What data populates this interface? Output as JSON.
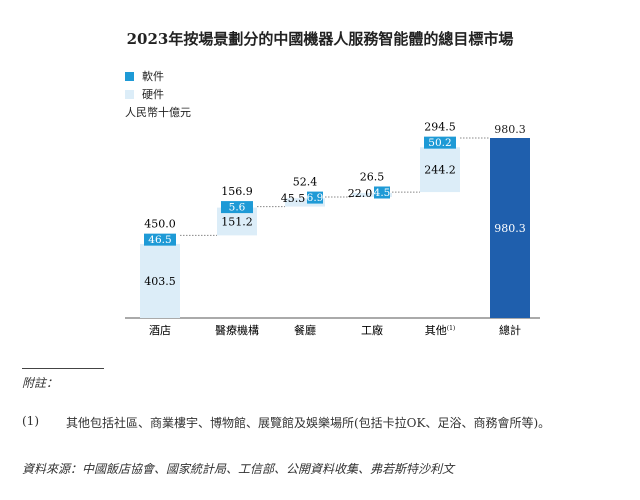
{
  "chart_data": {
    "type": "bar",
    "subtype": "waterfall",
    "title": "2023年按場景劃分的中國機器人服務智能體的總目標市場",
    "unit": "人民幣十億元",
    "legend": [
      {
        "name": "軟件",
        "color": "#1e9ad6"
      },
      {
        "name": "硬件",
        "color": "#dcedf8"
      }
    ],
    "legend_placement": "top-left",
    "categories": [
      "酒店",
      "醫療機構",
      "餐廳",
      "工廠",
      "其他",
      "總計"
    ],
    "category_superscripts": {
      "其他": "(1)"
    },
    "series": [
      {
        "name": "硬件",
        "values": [
          403.5,
          151.2,
          45.5,
          22.0,
          244.2,
          null
        ]
      },
      {
        "name": "軟件",
        "values": [
          46.5,
          5.6,
          6.9,
          4.5,
          50.2,
          null
        ]
      }
    ],
    "totals": [
      450.0,
      156.9,
      52.4,
      26.5,
      294.5,
      980.3
    ],
    "total_bar": {
      "value": 980.3,
      "color": "#1f5fad"
    },
    "grid": false
  },
  "notes": {
    "divider": "",
    "heading": "附註：",
    "note1_marker": "(1)",
    "note1_text": "其他包括社區、商業樓宇、博物館、展覽館及娛樂場所(包括卡拉OK、足浴、商務會所等)。",
    "source": "資料來源：中國飯店協會、國家統計局、工信部、公開資料收集、弗若斯特沙利文"
  }
}
